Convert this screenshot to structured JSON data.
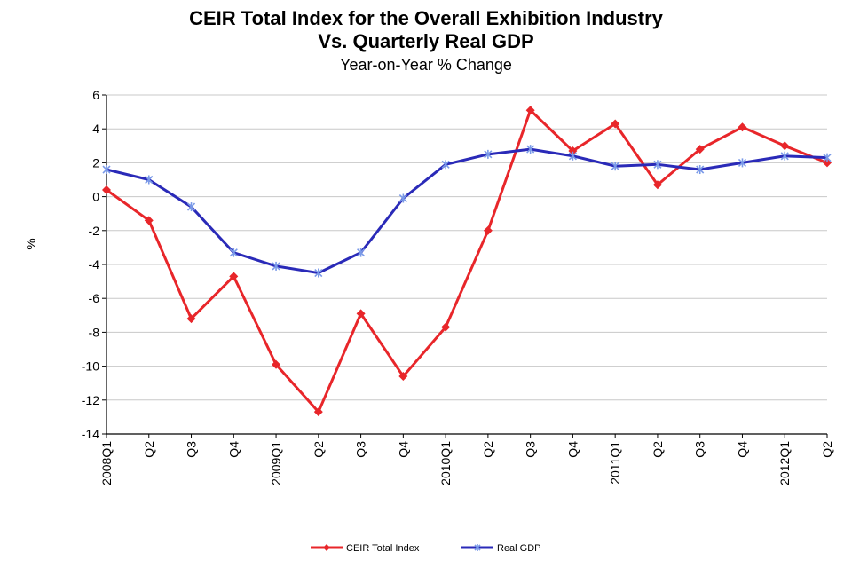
{
  "chart_data": {
    "type": "line",
    "title": "CEIR Total Index for the Overall Exhibition Industry",
    "title_line2": "Vs. Quarterly Real GDP",
    "subtitle": "Year-on-Year % Change",
    "xlabel": "",
    "ylabel": "%",
    "ylim": [
      -14,
      6
    ],
    "yticks": [
      6,
      4,
      2,
      0,
      -2,
      -4,
      -6,
      -8,
      -10,
      -12,
      -14
    ],
    "grid": true,
    "legend_position": "bottom",
    "categories": [
      "2008Q1",
      "Q2",
      "Q3",
      "Q4",
      "2009Q1",
      "Q2",
      "Q3",
      "Q4",
      "2010Q1",
      "Q2",
      "Q3",
      "Q4",
      "2011Q1",
      "Q2",
      "Q3",
      "Q4",
      "2012Q1",
      "Q2"
    ],
    "series": [
      {
        "name": "CEIR Total Index",
        "color": "#e8262a",
        "marker": "diamond",
        "values": [
          0.4,
          -1.4,
          -7.2,
          -4.7,
          -9.9,
          -12.7,
          -6.9,
          -10.6,
          -7.7,
          -2.0,
          5.1,
          2.7,
          4.3,
          0.7,
          2.8,
          4.1,
          3.0,
          2.0
        ]
      },
      {
        "name": "Real GDP",
        "color": "#2a2ab8",
        "marker": "asterisk",
        "values": [
          1.6,
          1.0,
          -0.6,
          -3.3,
          -4.1,
          -4.5,
          -3.3,
          -0.1,
          1.9,
          2.5,
          2.8,
          2.4,
          1.8,
          1.9,
          1.6,
          2.0,
          2.4,
          2.3
        ]
      }
    ]
  }
}
